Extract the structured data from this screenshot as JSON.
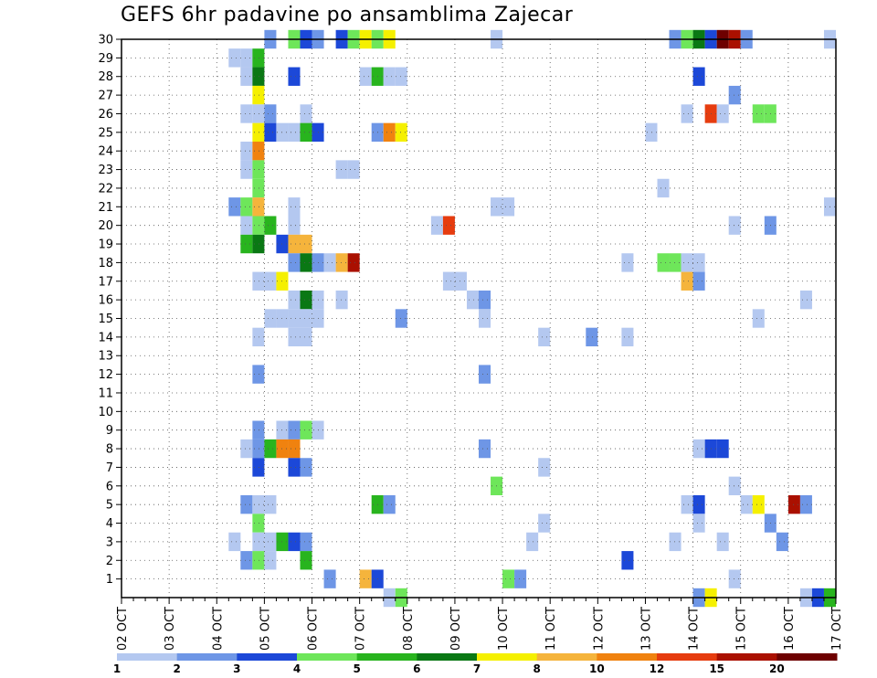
{
  "chart_data": {
    "type": "heatmap",
    "title": "GEFS 6hr padavine po ansamblima Zajecar",
    "x_tick_labels": [
      "02 OCT",
      "03 OCT",
      "04 OCT",
      "05 OCT",
      "06 OCT",
      "07 OCT",
      "08 OCT",
      "09 OCT",
      "10 OCT",
      "11 OCT",
      "12 OCT",
      "13 OCT",
      "14 OCT",
      "15 OCT",
      "16 OCT",
      "17 OCT"
    ],
    "y_tick_labels": [
      "1",
      "2",
      "3",
      "4",
      "5",
      "6",
      "7",
      "8",
      "9",
      "10",
      "11",
      "12",
      "13",
      "14",
      "15",
      "16",
      "17",
      "18",
      "19",
      "20",
      "21",
      "22",
      "23",
      "24",
      "25",
      "26",
      "27",
      "28",
      "29",
      "30"
    ],
    "x_steps_per_day": 4,
    "x_range_steps": [
      0,
      60
    ],
    "y_range": [
      0,
      30
    ],
    "grid": true,
    "legend": {
      "position": "bottom",
      "bins": [
        {
          "color": "#b4c8f0",
          "value": 1
        },
        {
          "color": "#6e96e6",
          "value": 2
        },
        {
          "color": "#1c48d8",
          "value": 3
        },
        {
          "color": "#6ee65a",
          "value": 4
        },
        {
          "color": "#28b41e",
          "value": 5
        },
        {
          "color": "#0a7814",
          "value": 6
        },
        {
          "color": "#f5f000",
          "value": 7
        },
        {
          "color": "#f5b43c",
          "value": 8
        },
        {
          "color": "#f0820f",
          "value": 10
        },
        {
          "color": "#e63c0f",
          "value": 12
        },
        {
          "color": "#aa1000",
          "value": 15
        },
        {
          "color": "#6e0000",
          "value": 20
        }
      ],
      "labels": [
        "1",
        "2",
        "3",
        "4",
        "5",
        "6",
        "7",
        "8",
        "10",
        "12",
        "15",
        "20"
      ]
    },
    "cells": [
      [
        12.5,
        30,
        2
      ],
      [
        14.5,
        30,
        4
      ],
      [
        15.5,
        30,
        3
      ],
      [
        16.5,
        30,
        2
      ],
      [
        18.5,
        30,
        3
      ],
      [
        19.5,
        30,
        4
      ],
      [
        20.5,
        30,
        7
      ],
      [
        21.5,
        30,
        4
      ],
      [
        22.5,
        30,
        7
      ],
      [
        31.5,
        30,
        1
      ],
      [
        46.5,
        30,
        2
      ],
      [
        47.5,
        30,
        4
      ],
      [
        48.5,
        30,
        6
      ],
      [
        49.5,
        30,
        3
      ],
      [
        50.5,
        30,
        20
      ],
      [
        51.5,
        30,
        15
      ],
      [
        52.5,
        30,
        2
      ],
      [
        59.5,
        30,
        1
      ],
      [
        9.5,
        29,
        1
      ],
      [
        10.5,
        29,
        1
      ],
      [
        11.5,
        29,
        5
      ],
      [
        10.5,
        28,
        1
      ],
      [
        11.5,
        28,
        6
      ],
      [
        14.5,
        28,
        3
      ],
      [
        20.5,
        28,
        1
      ],
      [
        21.5,
        28,
        5
      ],
      [
        22.5,
        28,
        1
      ],
      [
        23.5,
        28,
        1
      ],
      [
        48.5,
        28,
        3
      ],
      [
        11.5,
        27,
        7
      ],
      [
        51.5,
        27,
        2
      ],
      [
        10.5,
        26,
        1
      ],
      [
        11.5,
        26,
        1
      ],
      [
        12.5,
        26,
        2
      ],
      [
        15.5,
        26,
        1
      ],
      [
        47.5,
        26,
        1
      ],
      [
        49.5,
        26,
        12
      ],
      [
        50.5,
        26,
        1
      ],
      [
        53.5,
        26,
        4
      ],
      [
        54.5,
        26,
        4
      ],
      [
        11.5,
        25,
        7
      ],
      [
        12.5,
        25,
        3
      ],
      [
        13.5,
        25,
        1
      ],
      [
        14.5,
        25,
        1
      ],
      [
        15.5,
        25,
        5
      ],
      [
        16.5,
        25,
        3
      ],
      [
        21.5,
        25,
        2
      ],
      [
        22.5,
        25,
        10
      ],
      [
        23.5,
        25,
        7
      ],
      [
        44.5,
        25,
        1
      ],
      [
        10.5,
        24,
        1
      ],
      [
        11.5,
        24,
        10
      ],
      [
        10.5,
        23,
        1
      ],
      [
        11.5,
        23,
        4
      ],
      [
        18.5,
        23,
        1
      ],
      [
        19.5,
        23,
        1
      ],
      [
        11.5,
        22,
        4
      ],
      [
        45.5,
        22,
        1
      ],
      [
        9.5,
        21,
        2
      ],
      [
        10.5,
        21,
        4
      ],
      [
        11.5,
        21,
        8
      ],
      [
        14.5,
        21,
        1
      ],
      [
        31.5,
        21,
        1
      ],
      [
        32.5,
        21,
        1
      ],
      [
        59.5,
        21,
        1
      ],
      [
        10.5,
        20,
        1
      ],
      [
        11.5,
        20,
        4
      ],
      [
        12.5,
        20,
        5
      ],
      [
        14.5,
        20,
        1
      ],
      [
        26.5,
        20,
        1
      ],
      [
        27.5,
        20,
        12
      ],
      [
        51.5,
        20,
        1
      ],
      [
        54.5,
        20,
        2
      ],
      [
        10.5,
        19,
        5
      ],
      [
        11.5,
        19,
        6
      ],
      [
        13.5,
        19,
        3
      ],
      [
        14.5,
        19,
        8
      ],
      [
        15.5,
        19,
        8
      ],
      [
        14.5,
        18,
        2
      ],
      [
        15.5,
        18,
        6
      ],
      [
        16.5,
        18,
        2
      ],
      [
        17.5,
        18,
        1
      ],
      [
        18.5,
        18,
        8
      ],
      [
        19.5,
        18,
        15
      ],
      [
        42.5,
        18,
        1
      ],
      [
        45.5,
        18,
        4
      ],
      [
        46.5,
        18,
        4
      ],
      [
        47.5,
        18,
        1
      ],
      [
        48.5,
        18,
        1
      ],
      [
        11.5,
        17,
        1
      ],
      [
        12.5,
        17,
        1
      ],
      [
        13.5,
        17,
        7
      ],
      [
        27.5,
        17,
        1
      ],
      [
        28.5,
        17,
        1
      ],
      [
        47.5,
        17,
        8
      ],
      [
        48.5,
        17,
        2
      ],
      [
        14.5,
        16,
        1
      ],
      [
        15.5,
        16,
        6
      ],
      [
        16.5,
        16,
        1
      ],
      [
        18.5,
        16,
        1
      ],
      [
        29.5,
        16,
        1
      ],
      [
        30.5,
        16,
        2
      ],
      [
        57.5,
        16,
        1
      ],
      [
        12.5,
        15,
        1
      ],
      [
        13.5,
        15,
        1
      ],
      [
        14.5,
        15,
        1
      ],
      [
        15.5,
        15,
        1
      ],
      [
        16.5,
        15,
        1
      ],
      [
        23.5,
        15,
        2
      ],
      [
        30.5,
        15,
        1
      ],
      [
        53.5,
        15,
        1
      ],
      [
        11.5,
        14,
        1
      ],
      [
        14.5,
        14,
        1
      ],
      [
        15.5,
        14,
        1
      ],
      [
        35.5,
        14,
        1
      ],
      [
        39.5,
        14,
        2
      ],
      [
        42.5,
        14,
        1
      ],
      [
        11.5,
        12,
        2
      ],
      [
        30.5,
        12,
        2
      ],
      [
        11.5,
        9,
        2
      ],
      [
        13.5,
        9,
        1
      ],
      [
        14.5,
        9,
        2
      ],
      [
        15.5,
        9,
        4
      ],
      [
        16.5,
        9,
        1
      ],
      [
        10.5,
        8,
        1
      ],
      [
        11.5,
        8,
        2
      ],
      [
        12.5,
        8,
        5
      ],
      [
        13.5,
        8,
        10
      ],
      [
        14.5,
        8,
        10
      ],
      [
        30.5,
        8,
        2
      ],
      [
        48.5,
        8,
        1
      ],
      [
        49.5,
        8,
        3
      ],
      [
        50.5,
        8,
        3
      ],
      [
        11.5,
        7,
        3
      ],
      [
        14.5,
        7,
        3
      ],
      [
        15.5,
        7,
        2
      ],
      [
        35.5,
        7,
        1
      ],
      [
        31.5,
        6,
        4
      ],
      [
        51.5,
        6,
        1
      ],
      [
        10.5,
        5,
        2
      ],
      [
        11.5,
        5,
        1
      ],
      [
        12.5,
        5,
        1
      ],
      [
        21.5,
        5,
        5
      ],
      [
        22.5,
        5,
        2
      ],
      [
        47.5,
        5,
        1
      ],
      [
        48.5,
        5,
        3
      ],
      [
        52.5,
        5,
        1
      ],
      [
        53.5,
        5,
        7
      ],
      [
        56.5,
        5,
        15
      ],
      [
        57.5,
        5,
        2
      ],
      [
        11.5,
        4,
        4
      ],
      [
        35.5,
        4,
        1
      ],
      [
        48.5,
        4,
        1
      ],
      [
        54.5,
        4,
        2
      ],
      [
        9.5,
        3,
        1
      ],
      [
        11.5,
        3,
        1
      ],
      [
        12.5,
        3,
        1
      ],
      [
        13.5,
        3,
        5
      ],
      [
        14.5,
        3,
        3
      ],
      [
        15.5,
        3,
        2
      ],
      [
        34.5,
        3,
        1
      ],
      [
        46.5,
        3,
        1
      ],
      [
        50.5,
        3,
        1
      ],
      [
        55.5,
        3,
        2
      ],
      [
        10.5,
        2,
        2
      ],
      [
        11.5,
        2,
        4
      ],
      [
        12.5,
        2,
        1
      ],
      [
        15.5,
        2,
        5
      ],
      [
        42.5,
        2,
        3
      ],
      [
        17.5,
        1,
        2
      ],
      [
        20.5,
        1,
        8
      ],
      [
        21.5,
        1,
        3
      ],
      [
        32.5,
        1,
        4
      ],
      [
        33.5,
        1,
        2
      ],
      [
        51.5,
        1,
        1
      ],
      [
        22.5,
        0,
        1
      ],
      [
        23.5,
        0,
        4
      ],
      [
        48.5,
        0,
        2
      ],
      [
        49.5,
        0,
        7
      ],
      [
        57.5,
        0,
        1
      ],
      [
        58.5,
        0,
        3
      ],
      [
        59.5,
        0,
        5
      ]
    ]
  }
}
